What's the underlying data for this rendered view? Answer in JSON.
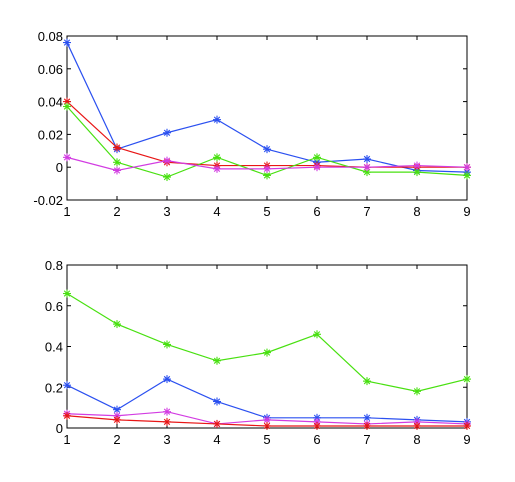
{
  "chart_data": [
    {
      "type": "line",
      "x": [
        1,
        2,
        3,
        4,
        5,
        6,
        7,
        8,
        9
      ],
      "xlim": [
        1,
        9
      ],
      "ylim": [
        -0.02,
        0.08
      ],
      "xticks": [
        "1",
        "2",
        "3",
        "4",
        "5",
        "6",
        "7",
        "8",
        "9"
      ],
      "yticks": [
        {
          "value": -0.02,
          "label": "-0.02"
        },
        {
          "value": 0,
          "label": "0"
        },
        {
          "value": 0.02,
          "label": "0.02"
        },
        {
          "value": 0.04,
          "label": "0.04"
        },
        {
          "value": 0.06,
          "label": "0.06"
        },
        {
          "value": 0.08,
          "label": "0.08"
        }
      ],
      "grid": false,
      "marker": "asterisk",
      "series": [
        {
          "color": "#2b50f0",
          "values": [
            0.076,
            0.011,
            0.021,
            0.029,
            0.011,
            0.003,
            0.005,
            -0.002,
            -0.003
          ]
        },
        {
          "color": "#e81616",
          "values": [
            0.04,
            0.012,
            0.003,
            0.001,
            0.001,
            0.001,
            0.0,
            0.0,
            0.0
          ]
        },
        {
          "color": "#48e010",
          "values": [
            0.037,
            0.003,
            -0.006,
            0.006,
            -0.005,
            0.006,
            -0.003,
            -0.003,
            -0.005
          ]
        },
        {
          "color": "#d23ce2",
          "values": [
            0.006,
            -0.002,
            0.004,
            -0.001,
            -0.001,
            0.0,
            0.0,
            0.001,
            0.0
          ]
        }
      ]
    },
    {
      "type": "line",
      "x": [
        1,
        2,
        3,
        4,
        5,
        6,
        7,
        8,
        9
      ],
      "xlim": [
        1,
        9
      ],
      "ylim": [
        0,
        0.8
      ],
      "xticks": [
        "1",
        "2",
        "3",
        "4",
        "5",
        "6",
        "7",
        "8",
        "9"
      ],
      "yticks": [
        {
          "value": 0,
          "label": "0"
        },
        {
          "value": 0.2,
          "label": "0.2"
        },
        {
          "value": 0.4,
          "label": "0.4"
        },
        {
          "value": 0.6,
          "label": "0.6"
        },
        {
          "value": 0.8,
          "label": "0.8"
        }
      ],
      "grid": false,
      "marker": "asterisk",
      "series": [
        {
          "color": "#48e010",
          "values": [
            0.66,
            0.51,
            0.41,
            0.33,
            0.37,
            0.46,
            0.23,
            0.18,
            0.24
          ]
        },
        {
          "color": "#2b50f0",
          "values": [
            0.21,
            0.09,
            0.24,
            0.13,
            0.05,
            0.05,
            0.05,
            0.04,
            0.03
          ]
        },
        {
          "color": "#d23ce2",
          "values": [
            0.07,
            0.06,
            0.08,
            0.02,
            0.04,
            0.03,
            0.02,
            0.03,
            0.02
          ]
        },
        {
          "color": "#e81616",
          "values": [
            0.06,
            0.04,
            0.03,
            0.02,
            0.01,
            0.01,
            0.01,
            0.01,
            0.01
          ]
        }
      ]
    }
  ]
}
